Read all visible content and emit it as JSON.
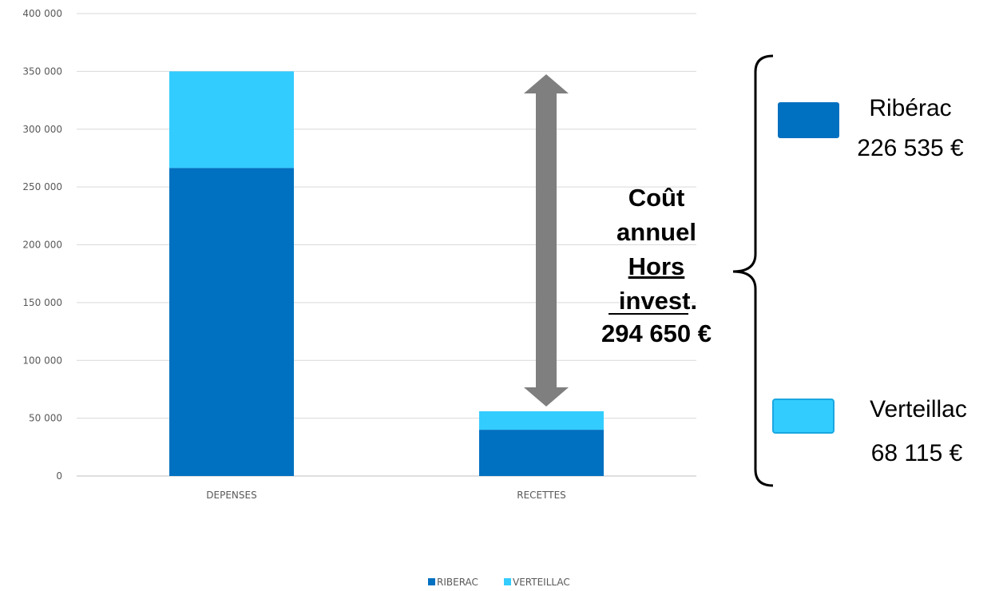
{
  "chart_data": {
    "type": "bar",
    "stacked": true,
    "categories": [
      "DEPENSES",
      "RECETTES"
    ],
    "series": [
      {
        "name": "RIBERAC",
        "values": [
          266500,
          40000
        ],
        "color": "#0070C0"
      },
      {
        "name": "VERTEILLAC",
        "values": [
          83500,
          16000
        ],
        "color": "#33CCFF"
      }
    ],
    "ylim": [
      0,
      400000
    ],
    "yticks": [
      0,
      50000,
      100000,
      150000,
      200000,
      250000,
      300000,
      350000,
      400000
    ],
    "ytick_labels": [
      "0",
      "50 000",
      "100 000",
      "150 000",
      "200 000",
      "250 000",
      "300 000",
      "350 000",
      "400 000"
    ],
    "grid": true,
    "legend": {
      "position": "bottom",
      "items": [
        "RIBERAC",
        "VERTEILLAC"
      ]
    },
    "title": "",
    "xlabel": "",
    "ylabel": ""
  },
  "annotation": {
    "lines": [
      "Coût",
      "annuel",
      "Hors",
      "invest.",
      "294 650 €"
    ],
    "arrow_color": "#7F7F7F"
  },
  "breakdown": {
    "items": [
      {
        "name": "Ribérac",
        "amount": "226 535 €",
        "color": "#0070C0"
      },
      {
        "name": "Verteillac",
        "amount": "68 115 €",
        "color": "#33CCFF"
      }
    ]
  }
}
